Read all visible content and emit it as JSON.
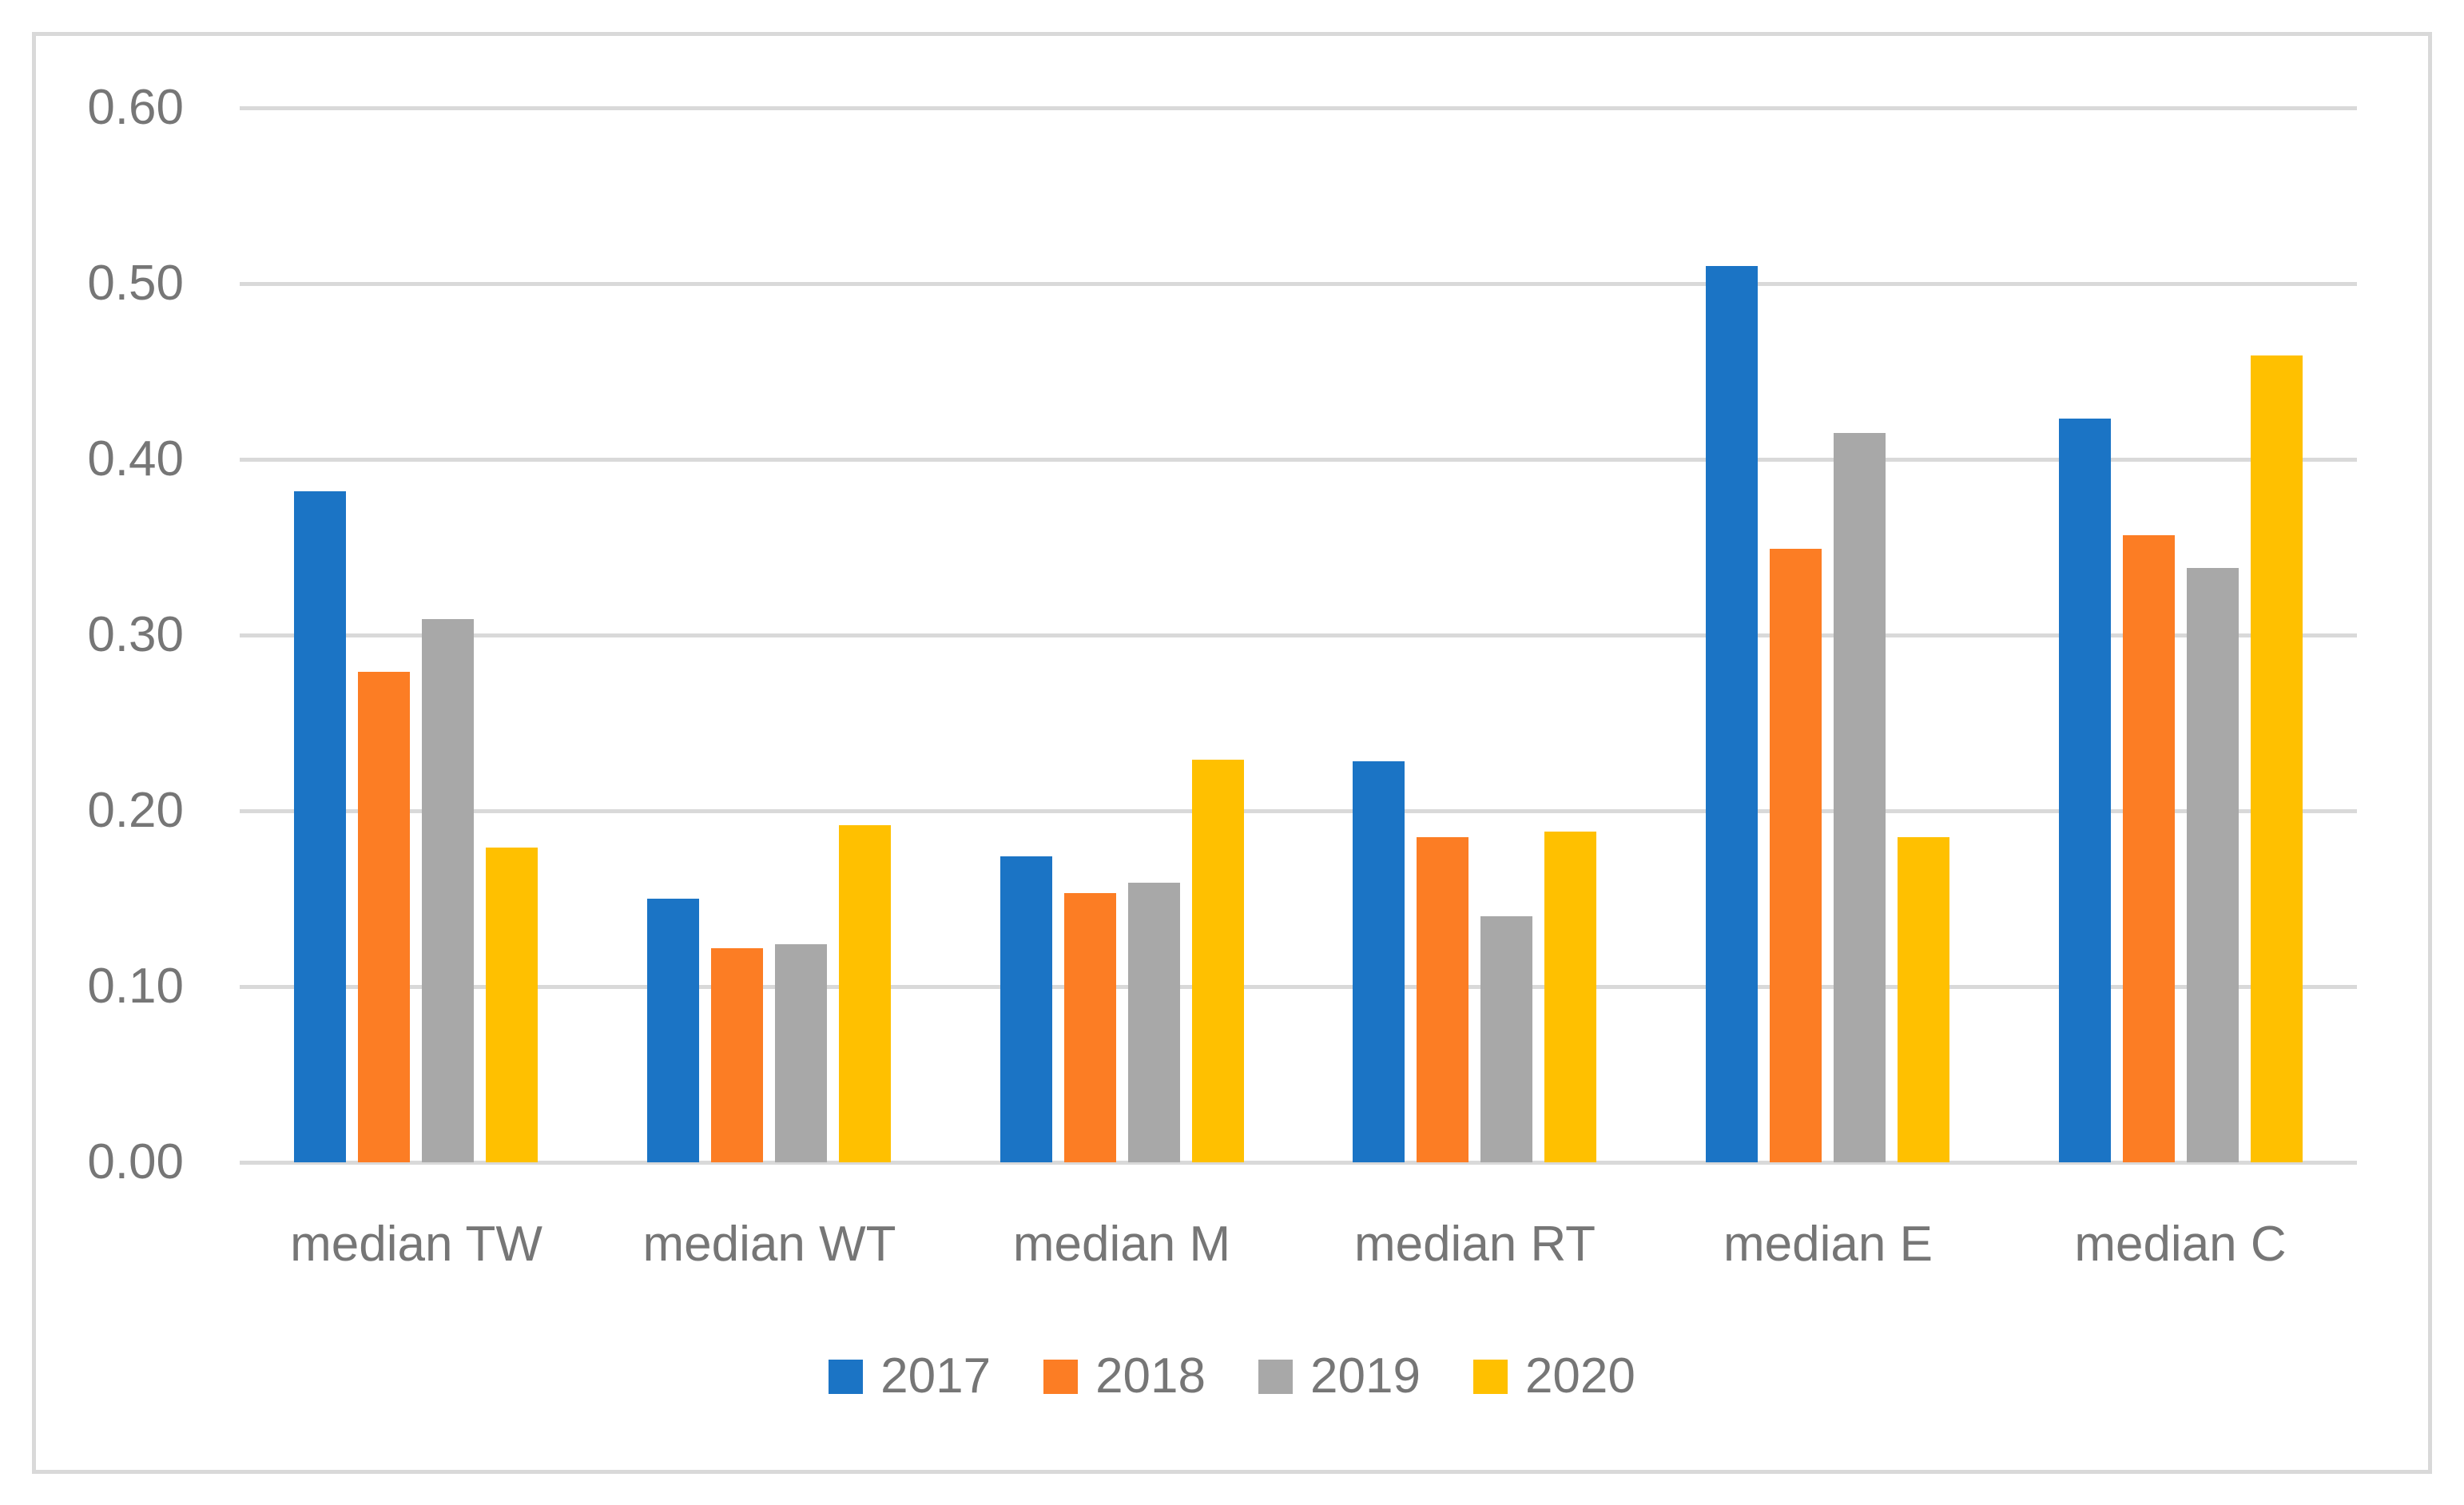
{
  "chart_data": {
    "type": "bar",
    "title": "",
    "categories": [
      "median TW",
      "median WT",
      "median M",
      "median RT",
      "median E",
      "median C"
    ],
    "series": [
      {
        "name": "2017",
        "color": "#1b74c5",
        "values": [
          0.382,
          0.15,
          0.174,
          0.228,
          0.51,
          0.423
        ]
      },
      {
        "name": "2018",
        "color": "#fc7d24",
        "values": [
          0.279,
          0.122,
          0.153,
          0.185,
          0.349,
          0.357
        ]
      },
      {
        "name": "2019",
        "color": "#a8a8a8",
        "values": [
          0.309,
          0.124,
          0.159,
          0.14,
          0.415,
          0.338
        ]
      },
      {
        "name": "2020",
        "color": "#ffc000",
        "values": [
          0.179,
          0.192,
          0.229,
          0.188,
          0.185,
          0.459
        ]
      }
    ],
    "y_axis": {
      "min": 0.0,
      "max": 0.6,
      "tick_step": 0.1,
      "tick_labels": [
        "0.00",
        "0.10",
        "0.20",
        "0.30",
        "0.40",
        "0.50",
        "0.60"
      ]
    },
    "x_axis_label": "",
    "y_axis_label": "",
    "grid": "horizontal",
    "legend_position": "bottom",
    "legend_entries": [
      "2017",
      "2018",
      "2019",
      "2020"
    ],
    "colors": {
      "gridline": "#d9d9d9",
      "frame_border": "#d9d9d9",
      "label_text": "#767676",
      "background": "#ffffff"
    }
  }
}
